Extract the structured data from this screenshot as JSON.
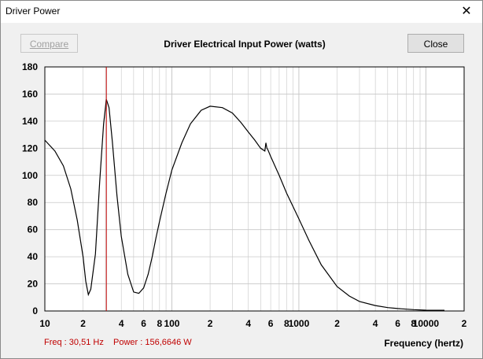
{
  "window": {
    "title": "Driver Power",
    "close_glyph": "✕"
  },
  "buttons": {
    "compare": "Compare",
    "close": "Close"
  },
  "chart_title": "Driver Electrical Input Power (watts)",
  "readout": {
    "freq": "Freq : 30,51 Hz",
    "power": "Power : 156,6646 W"
  },
  "colors": {
    "curve": "#000000",
    "cursor": "#c00000",
    "grid": "#c8c8c8"
  },
  "chart_data": {
    "type": "line",
    "title": "Driver Electrical Input Power (watts)",
    "xlabel": "Frequency (hertz)",
    "ylabel": "",
    "xscale": "log",
    "xlim": [
      10,
      20000
    ],
    "ylim": [
      0,
      180
    ],
    "grid": true,
    "y_ticks": [
      "0",
      "20",
      "40",
      "60",
      "80",
      "100",
      "120",
      "140",
      "160",
      "180"
    ],
    "x_ticks": [
      {
        "v": 10,
        "label": "10"
      },
      {
        "v": 20,
        "label": "2"
      },
      {
        "v": 40,
        "label": "4"
      },
      {
        "v": 60,
        "label": "6"
      },
      {
        "v": 80,
        "label": "8"
      },
      {
        "v": 100,
        "label": "100"
      },
      {
        "v": 200,
        "label": "2"
      },
      {
        "v": 400,
        "label": "4"
      },
      {
        "v": 600,
        "label": "6"
      },
      {
        "v": 800,
        "label": "8"
      },
      {
        "v": 1000,
        "label": "1000"
      },
      {
        "v": 2000,
        "label": "2"
      },
      {
        "v": 4000,
        "label": "4"
      },
      {
        "v": 6000,
        "label": "6"
      },
      {
        "v": 8000,
        "label": "8"
      },
      {
        "v": 10000,
        "label": "10000"
      },
      {
        "v": 20000,
        "label": "2"
      }
    ],
    "cursor_x": 30.51,
    "series": [
      {
        "x": [
          10,
          12,
          14,
          16,
          18,
          20,
          21,
          22,
          23,
          25,
          27,
          29,
          30.5,
          32,
          34,
          37,
          40,
          45,
          50,
          55,
          60,
          65,
          70,
          75,
          80,
          90,
          100,
          120,
          140,
          170,
          200,
          250,
          300,
          350,
          400,
          450,
          500,
          540,
          550,
          560,
          570,
          600,
          700,
          800,
          1000,
          1200,
          1500,
          2000,
          2500,
          3000,
          4000,
          5000,
          6000,
          8000,
          10000,
          11000,
          12000,
          14000
        ],
        "y": [
          126,
          118,
          107,
          90,
          67,
          40,
          22,
          12,
          16,
          42,
          95,
          138,
          156,
          150,
          125,
          85,
          55,
          27,
          14,
          13,
          17,
          27,
          40,
          54,
          66,
          87,
          104,
          124,
          138,
          148,
          151,
          150,
          146,
          139,
          132,
          126,
          120,
          118,
          124,
          120,
          119,
          114,
          100,
          87,
          68,
          52,
          34,
          18,
          11,
          7,
          4,
          2.5,
          1.8,
          1,
          0.6,
          0.5,
          0.5,
          0.5
        ]
      }
    ]
  }
}
